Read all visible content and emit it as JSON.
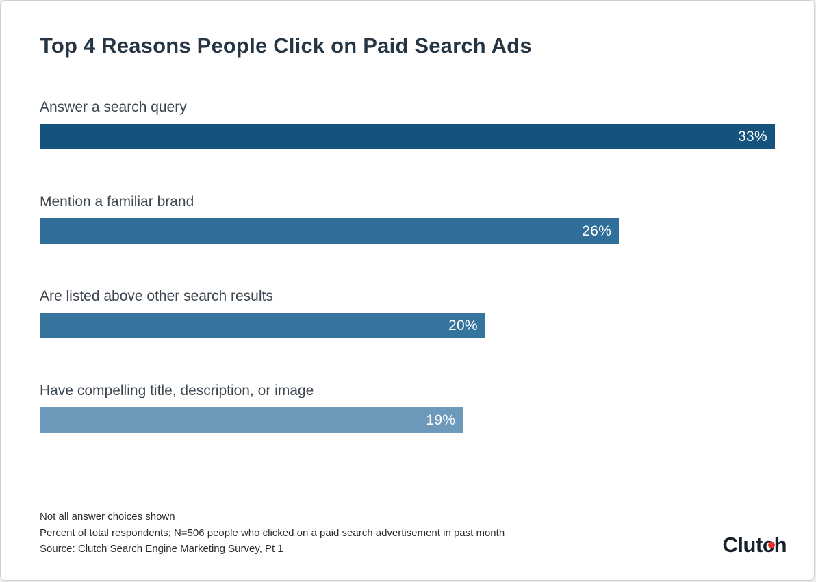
{
  "title": "Top 4 Reasons People Click on Paid Search Ads",
  "chart_data": {
    "type": "bar",
    "orientation": "horizontal",
    "title": "Top 4 Reasons People Click on Paid Search Ads",
    "categories": [
      "Answer a search query",
      "Mention a familiar brand",
      "Are listed above other search results",
      "Have compelling title, description, or image"
    ],
    "values": [
      33,
      26,
      20,
      19
    ],
    "value_labels": [
      "33%",
      "26%",
      "20%",
      "19%"
    ],
    "xlim": [
      0,
      33
    ],
    "bar_colors": [
      "#14537e",
      "#2f6f99",
      "#35749d",
      "#6d9aba"
    ],
    "grid": "off",
    "legend": "none"
  },
  "footnotes": {
    "line1": "Not all answer choices shown",
    "line2": "Percent of total respondents; N=506 people who clicked on a paid search advertisement in past month",
    "line3": "Source: Clutch Search Engine Marketing Survey, Pt 1"
  },
  "logo": {
    "part1": "Clut",
    "part2": "c",
    "part3": "h",
    "accent_color": "#e5352b"
  }
}
